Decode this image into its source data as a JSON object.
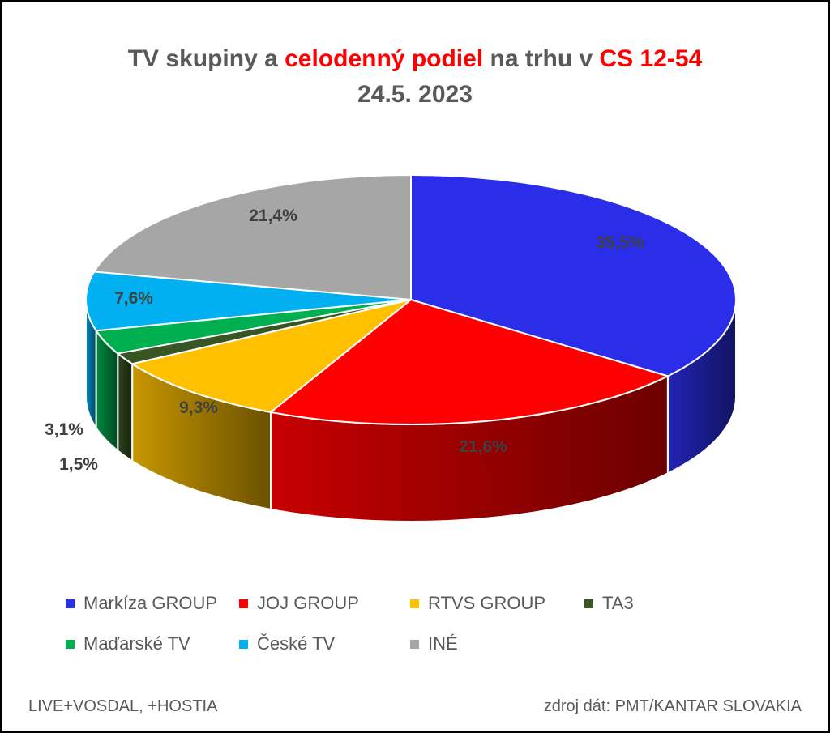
{
  "chart_data": {
    "type": "pie",
    "title_parts": [
      {
        "text": "TV skupiny a ",
        "highlight": false
      },
      {
        "text": "celodenný podiel",
        "highlight": true
      },
      {
        "text": " na trhu v ",
        "highlight": false
      },
      {
        "text": "CS 12-54",
        "highlight": true
      }
    ],
    "subtitle": "24.5. 2023",
    "highlight_color": "#ff0000",
    "slices": [
      {
        "name": "Markíza GROUP",
        "value": 35.5,
        "label": "35,5%",
        "color": "#2b2ee8"
      },
      {
        "name": "JOJ GROUP",
        "value": 21.6,
        "label": "21,6%",
        "color": "#ff0000"
      },
      {
        "name": "RTVS GROUP",
        "value": 9.3,
        "label": "9,3%",
        "color": "#ffc000"
      },
      {
        "name": "TA3",
        "value": 1.5,
        "label": "1,5%",
        "color": "#375623"
      },
      {
        "name": "Maďarské  TV",
        "value": 3.1,
        "label": "3,1%",
        "color": "#00b050"
      },
      {
        "name": "České  TV",
        "value": 7.6,
        "label": "7,6%",
        "color": "#00b0f0"
      },
      {
        "name": "INÉ",
        "value": 21.4,
        "label": "21,4%",
        "color": "#a6a6a6"
      }
    ],
    "legend_position": "bottom"
  },
  "footer": {
    "left": "LIVE+VOSDAL,  +HOSTIA",
    "right": "zdroj dát: PMT/KANTAR SLOVAKIA"
  }
}
